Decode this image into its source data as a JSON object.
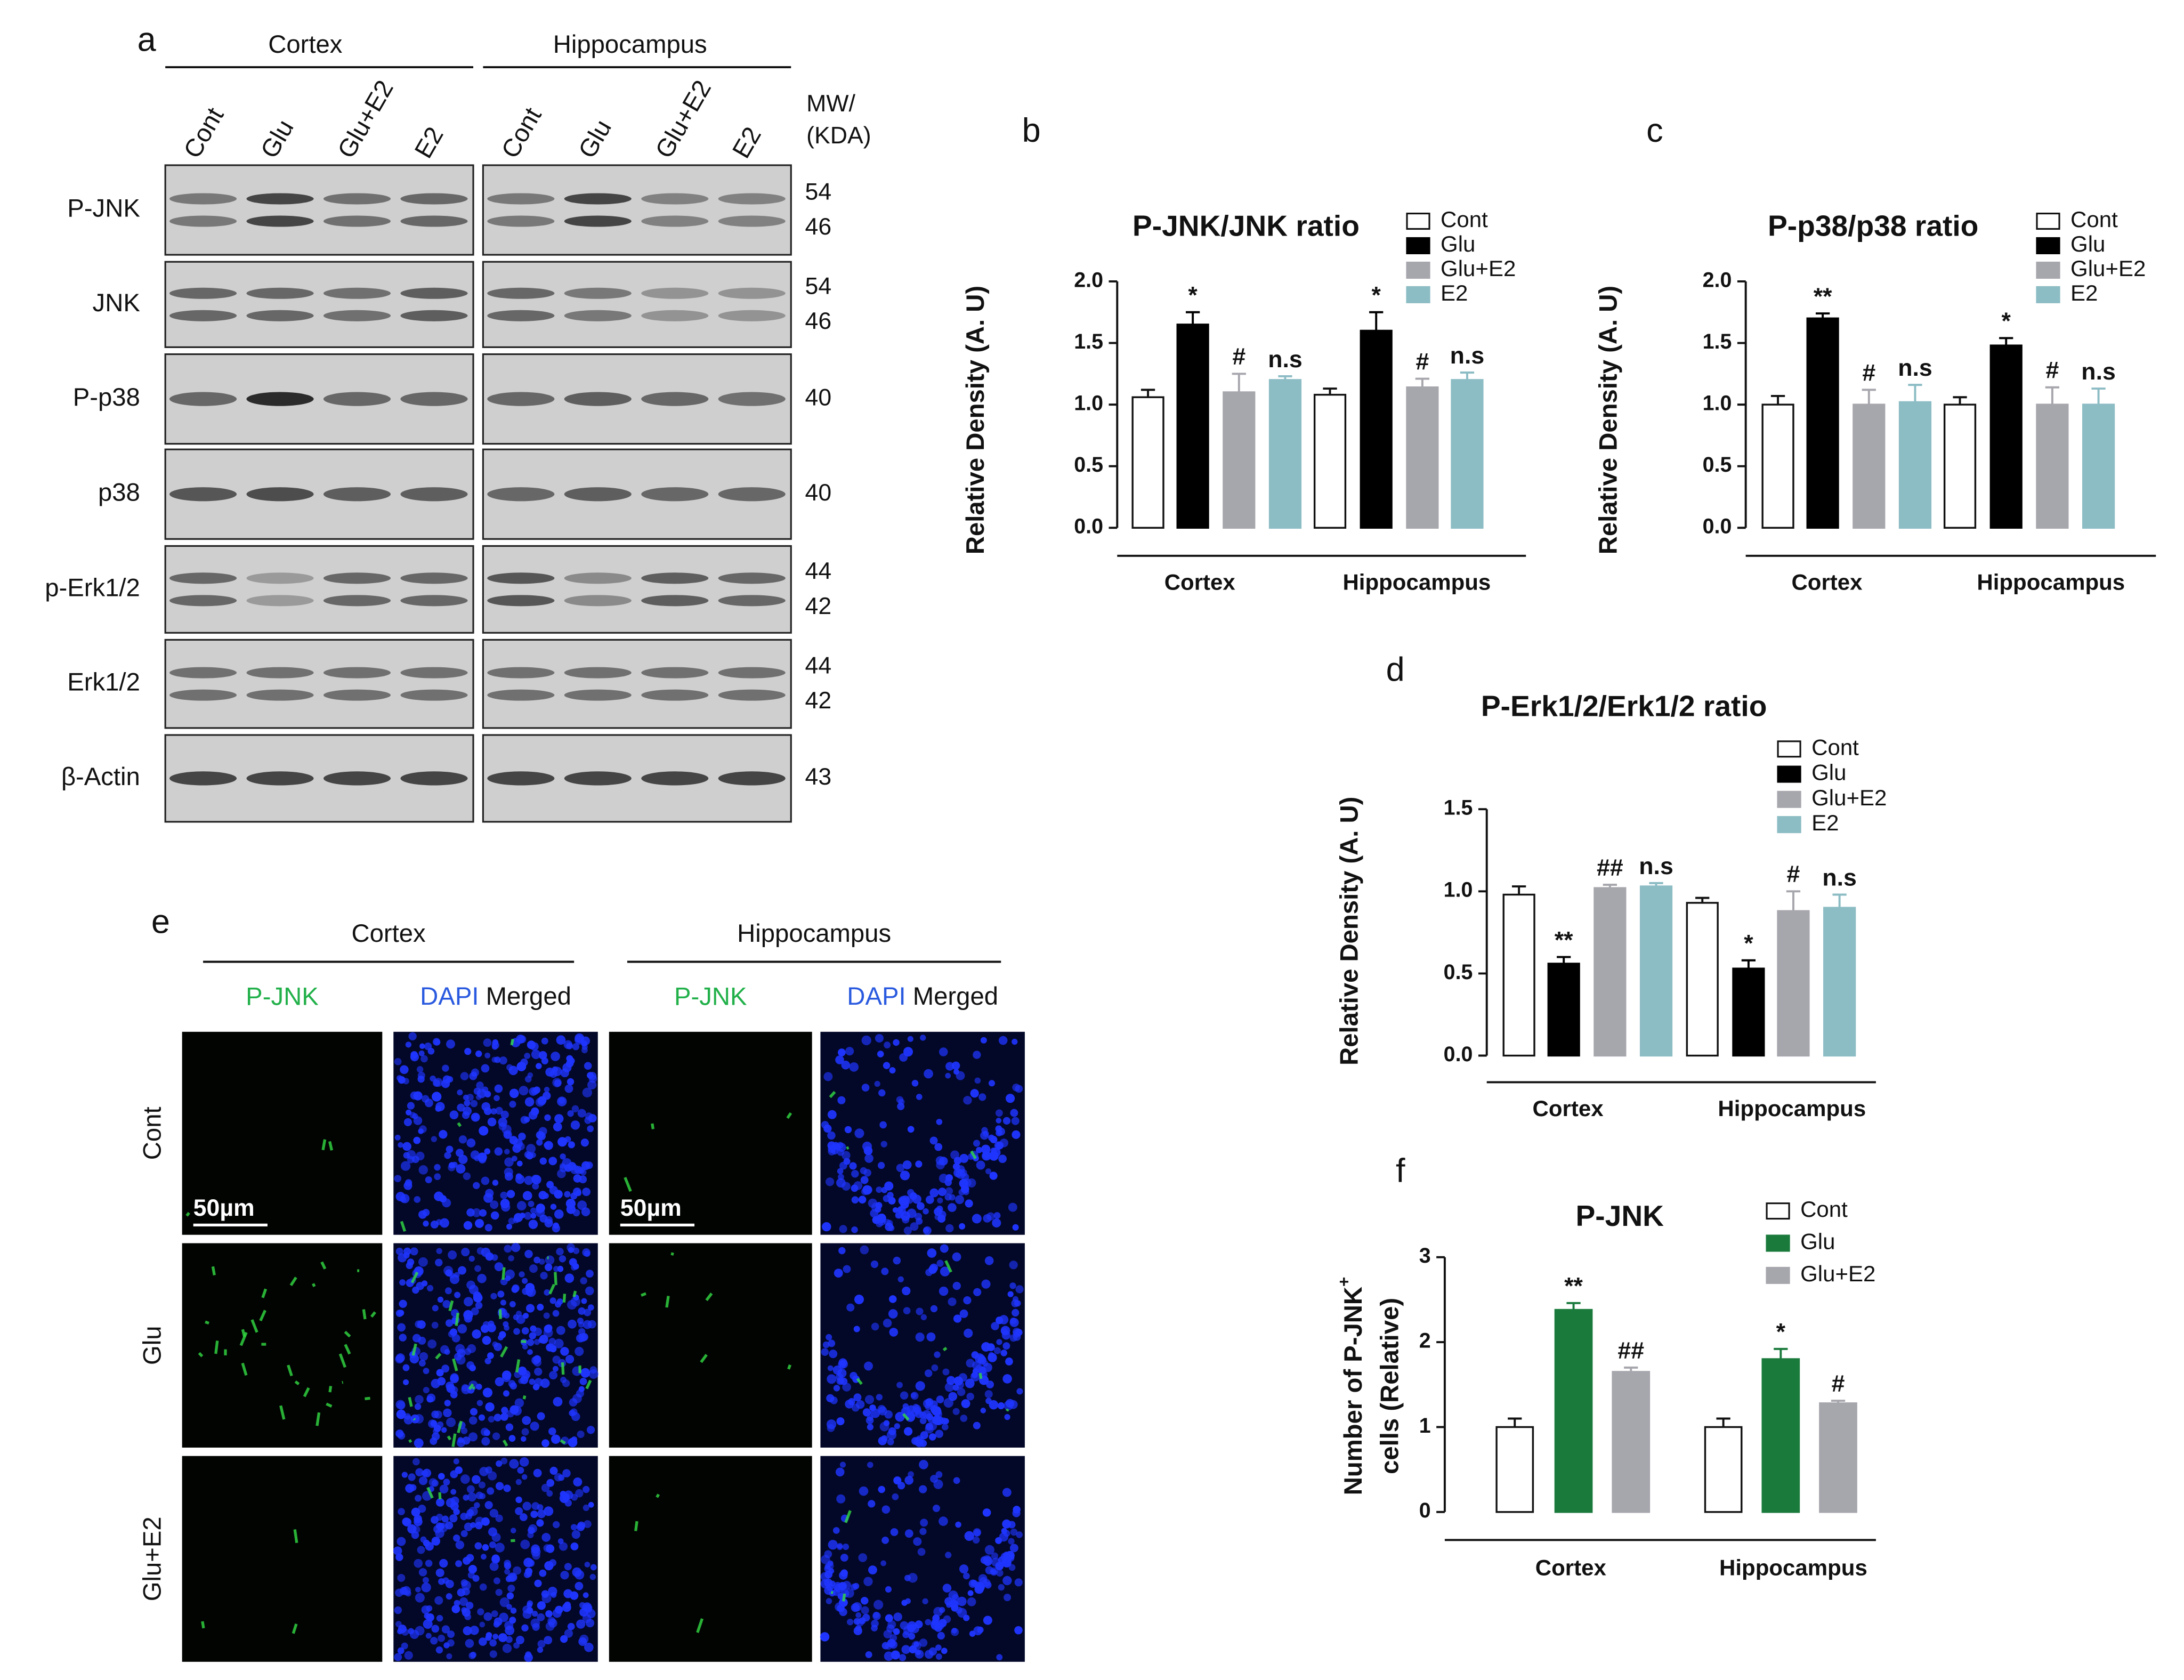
{
  "panel_a": {
    "letter": "a",
    "groups": [
      "Cortex",
      "Hippocampus"
    ],
    "lanes": [
      "Cont",
      "Glu",
      "Glu+E2",
      "E2"
    ],
    "mw_header": [
      "MW/",
      "(KDA)"
    ],
    "rows": [
      {
        "label": "P-JNK",
        "mw": [
          54,
          46
        ]
      },
      {
        "label": "JNK",
        "mw": [
          54,
          46
        ]
      },
      {
        "label": "P-p38",
        "mw": [
          40
        ]
      },
      {
        "label": "p38",
        "mw": [
          40
        ]
      },
      {
        "label": "p-Erk1/2",
        "mw": [
          44,
          42
        ]
      },
      {
        "label": "Erk1/2",
        "mw": [
          44,
          42
        ]
      },
      {
        "label": "β-Actin",
        "mw": [
          43
        ]
      }
    ]
  },
  "panel_e": {
    "letter": "e",
    "groups": [
      "Cortex",
      "Hippocampus"
    ],
    "green_label": "P-JNK",
    "blue_label": "DAPI",
    "merged_label": "Merged",
    "rows": [
      "Cont",
      "Glu",
      "Glu+E2"
    ],
    "scale_bar": "50µm"
  },
  "chart_data": [
    {
      "type": "bar",
      "letter": "b",
      "title": "P-JNK/JNK ratio",
      "y_label": "Relative Density (A. U)",
      "categories": [
        "Cortex",
        "Hippocampus"
      ],
      "series": [
        {
          "name": "Cont",
          "color": "#ffffff",
          "values": [
            1.06,
            1.08
          ],
          "errors": [
            0.06,
            0.05
          ]
        },
        {
          "name": "Glu",
          "color": "#000000",
          "values": [
            1.65,
            1.6
          ],
          "errors": [
            0.1,
            0.15
          ],
          "significance": [
            "*",
            "*"
          ]
        },
        {
          "name": "Glu+E2",
          "color": "#a6a6ad",
          "values": [
            1.1,
            1.14
          ],
          "errors": [
            0.15,
            0.07
          ],
          "significance": [
            "#",
            "#"
          ]
        },
        {
          "name": "E2",
          "color": "#8cbcc4",
          "values": [
            1.2,
            1.2
          ],
          "errors": [
            0.03,
            0.06
          ],
          "significance": [
            "n.s",
            "n.s"
          ]
        }
      ],
      "ylim": [
        0,
        2
      ],
      "yticks": [
        {
          "value": 0,
          "label": "0.0"
        },
        {
          "value": 0.5,
          "label": "0.5"
        },
        {
          "value": 1,
          "label": "1.0"
        },
        {
          "value": 1.5,
          "label": "1.5"
        },
        {
          "value": 2,
          "label": "2.0"
        }
      ]
    },
    {
      "type": "bar",
      "letter": "c",
      "title": "P-p38/p38 ratio",
      "y_label": "Relative Density (A. U)",
      "categories": [
        "Cortex",
        "Hippocampus"
      ],
      "series": [
        {
          "name": "Cont",
          "color": "#ffffff",
          "values": [
            1.0,
            1.0
          ],
          "errors": [
            0.07,
            0.06
          ]
        },
        {
          "name": "Glu",
          "color": "#000000",
          "values": [
            1.7,
            1.48
          ],
          "errors": [
            0.04,
            0.06
          ],
          "significance": [
            "**",
            "*"
          ]
        },
        {
          "name": "Glu+E2",
          "color": "#a6a6ad",
          "values": [
            1.0,
            1.0
          ],
          "errors": [
            0.12,
            0.14
          ],
          "significance": [
            "#",
            "#"
          ]
        },
        {
          "name": "E2",
          "color": "#8cbcc4",
          "values": [
            1.02,
            1.0
          ],
          "errors": [
            0.14,
            0.13
          ],
          "significance": [
            "n.s",
            "n.s"
          ]
        }
      ],
      "ylim": [
        0,
        2
      ],
      "yticks": [
        {
          "value": 0,
          "label": "0.0"
        },
        {
          "value": 0.5,
          "label": "0.5"
        },
        {
          "value": 1,
          "label": "1.0"
        },
        {
          "value": 1.5,
          "label": "1.5"
        },
        {
          "value": 2,
          "label": "2.0"
        }
      ]
    },
    {
      "type": "bar",
      "letter": "d",
      "title": "P-Erk1/2/Erk1/2 ratio",
      "y_label": "Relative Density (A. U)",
      "categories": [
        "Cortex",
        "Hippocampus"
      ],
      "series": [
        {
          "name": "Cont",
          "color": "#ffffff",
          "values": [
            0.98,
            0.93
          ],
          "errors": [
            0.05,
            0.03
          ]
        },
        {
          "name": "Glu",
          "color": "#000000",
          "values": [
            0.56,
            0.53
          ],
          "errors": [
            0.04,
            0.05
          ],
          "significance": [
            "**",
            "*"
          ]
        },
        {
          "name": "Glu+E2",
          "color": "#a6a6ad",
          "values": [
            1.02,
            0.88
          ],
          "errors": [
            0.02,
            0.12
          ],
          "significance": [
            "##",
            "#"
          ]
        },
        {
          "name": "E2",
          "color": "#8cbcc4",
          "values": [
            1.03,
            0.9
          ],
          "errors": [
            0.02,
            0.08
          ],
          "significance": [
            "n.s",
            "n.s"
          ]
        }
      ],
      "ylim": [
        0,
        1.5
      ],
      "yticks": [
        {
          "value": 0,
          "label": "0.0"
        },
        {
          "value": 0.5,
          "label": "0.5"
        },
        {
          "value": 1,
          "label": "1.0"
        },
        {
          "value": 1.5,
          "label": "1.5"
        }
      ]
    },
    {
      "type": "bar",
      "letter": "f",
      "title": "P-JNK",
      "y_label": {
        "main": "Number of P-JNK",
        "sup": "+",
        "line2": "cells (Relative)"
      },
      "categories": [
        "Cortex",
        "Hippocampus"
      ],
      "series": [
        {
          "name": "Cont",
          "color": "#ffffff",
          "values": [
            1.0,
            1.0
          ],
          "errors": [
            0.1,
            0.1
          ]
        },
        {
          "name": "Glu",
          "color": "#1a7a3c",
          "values": [
            2.38,
            1.8
          ],
          "errors": [
            0.08,
            0.12
          ],
          "significance": [
            "**",
            "*"
          ]
        },
        {
          "name": "Glu+E2",
          "color": "#a6a6ad",
          "values": [
            1.65,
            1.28
          ],
          "errors": [
            0.05,
            0.03
          ],
          "significance": [
            "##",
            "#"
          ]
        }
      ],
      "ylim": [
        0,
        3
      ],
      "yticks": [
        0,
        1,
        2,
        3
      ]
    }
  ]
}
